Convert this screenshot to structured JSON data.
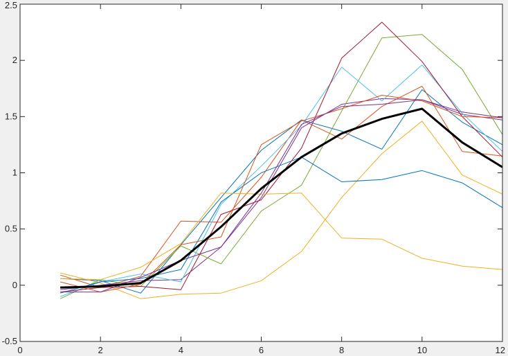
{
  "chart_data": {
    "type": "line",
    "title": "",
    "xlabel": "",
    "ylabel": "",
    "xlim": [
      0,
      12
    ],
    "ylim": [
      -0.5,
      2.5
    ],
    "xticks": [
      0,
      2,
      4,
      6,
      8,
      10,
      12
    ],
    "yticks": [
      -0.5,
      0,
      0.5,
      1,
      1.5,
      2,
      2.5
    ],
    "xtick_labels": [
      "0",
      "2",
      "4",
      "6",
      "8",
      "10",
      "12"
    ],
    "ytick_labels": [
      "-0.5",
      "0",
      "0.5",
      "1",
      "1.5",
      "2",
      "2.5"
    ],
    "grid": false,
    "x": [
      1,
      2,
      3,
      4,
      5,
      6,
      7,
      8,
      9,
      10,
      11,
      12
    ],
    "series": [
      {
        "color": "#0072BD",
        "width": 1,
        "values": [
          0.06,
          0.04,
          -0.07,
          0.36,
          0.78,
          1.2,
          1.47,
          1.37,
          1.21,
          1.74,
          1.45,
          1.25
        ]
      },
      {
        "color": "#D95319",
        "width": 1,
        "values": [
          0.09,
          -0.02,
          0.08,
          0.57,
          0.56,
          0.96,
          1.47,
          1.3,
          1.59,
          1.77,
          1.19,
          1.15
        ]
      },
      {
        "color": "#EDB120",
        "width": 1,
        "values": [
          0.11,
          0.02,
          -0.12,
          -0.08,
          -0.07,
          0.04,
          0.3,
          0.78,
          1.17,
          1.46,
          0.98,
          0.81
        ]
      },
      {
        "color": "#7E2F8E",
        "width": 1,
        "values": [
          -0.04,
          0.0,
          0.04,
          0.05,
          0.34,
          0.78,
          1.4,
          1.61,
          1.66,
          1.65,
          1.52,
          1.47
        ]
      },
      {
        "color": "#77AC30",
        "width": 1,
        "values": [
          -0.12,
          0.05,
          -0.01,
          0.35,
          0.19,
          0.66,
          0.89,
          1.55,
          2.2,
          2.23,
          1.92,
          1.34
        ]
      },
      {
        "color": "#4DBEEE",
        "width": 1,
        "values": [
          -0.1,
          0.03,
          0.1,
          0.03,
          0.72,
          1.06,
          1.42,
          1.94,
          1.64,
          1.96,
          1.53,
          1.19
        ]
      },
      {
        "color": "#A2142F",
        "width": 1,
        "values": [
          -0.06,
          -0.02,
          -0.01,
          -0.04,
          0.63,
          0.76,
          1.22,
          2.02,
          2.34,
          1.99,
          1.5,
          1.14
        ]
      },
      {
        "color": "#0072BD",
        "width": 1,
        "values": [
          -0.07,
          0.03,
          0.06,
          0.14,
          0.74,
          1.0,
          1.14,
          0.92,
          0.94,
          1.02,
          0.91,
          0.69
        ]
      },
      {
        "color": "#D95319",
        "width": 1,
        "values": [
          0.03,
          -0.06,
          0.01,
          0.36,
          0.43,
          1.25,
          1.46,
          1.57,
          1.69,
          1.64,
          1.5,
          1.49
        ]
      },
      {
        "color": "#EDB120",
        "width": 1,
        "values": [
          0.06,
          0.05,
          0.16,
          0.37,
          0.82,
          0.81,
          0.82,
          0.42,
          0.41,
          0.24,
          0.17,
          0.14
        ]
      },
      {
        "color": "#7E2F8E",
        "width": 1,
        "values": [
          -0.06,
          -0.06,
          0.07,
          0.22,
          0.34,
          0.82,
          1.43,
          1.59,
          1.61,
          1.65,
          1.54,
          1.49
        ]
      },
      {
        "color": "#000000",
        "width": 3,
        "values": [
          -0.02,
          -0.01,
          0.02,
          0.22,
          0.52,
          0.86,
          1.14,
          1.35,
          1.48,
          1.57,
          1.27,
          1.05
        ]
      }
    ]
  }
}
